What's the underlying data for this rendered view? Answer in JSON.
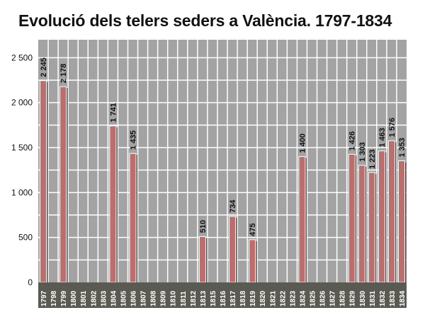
{
  "chart_data": {
    "type": "bar",
    "title": "Evolució dels telers seders a València. 1797-1834",
    "xlabel": "",
    "ylabel": "",
    "ylim": [
      0,
      2700
    ],
    "yticks": [
      0,
      500,
      1000,
      1500,
      2000,
      2500
    ],
    "ytick_labels": [
      "0",
      "500",
      "1 000",
      "1 500",
      "2 000",
      "2 500"
    ],
    "grid": true,
    "categories": [
      "1797",
      "1798",
      "1799",
      "1800",
      "1801",
      "1802",
      "1803",
      "1804",
      "1805",
      "1806",
      "1807",
      "1808",
      "1809",
      "1810",
      "1811",
      "1812",
      "1813",
      "1815",
      "1816",
      "1817",
      "1818",
      "1819",
      "1820",
      "1821",
      "1822",
      "1823",
      "1824",
      "1825",
      "1826",
      "1827",
      "1828",
      "1829",
      "1830",
      "1831",
      "1832",
      "1833",
      "1834"
    ],
    "values": [
      2245,
      null,
      2178,
      null,
      null,
      null,
      null,
      1741,
      null,
      1435,
      null,
      null,
      null,
      null,
      null,
      null,
      510,
      null,
      null,
      734,
      null,
      475,
      null,
      null,
      null,
      null,
      1400,
      null,
      null,
      null,
      null,
      1426,
      1303,
      1223,
      1463,
      1576,
      1353
    ],
    "value_labels": [
      "2 245",
      "",
      "2 178",
      "",
      "",
      "",
      "",
      "1 741",
      "",
      "1 435",
      "",
      "",
      "",
      "",
      "",
      "",
      "510",
      "",
      "",
      "734",
      "",
      "475",
      "",
      "",
      "",
      "",
      "1 400",
      "",
      "",
      "",
      "",
      "1 426",
      "1 303",
      "1 223",
      "1 463",
      "1 576",
      "1 353"
    ]
  },
  "colors": {
    "background_panel": "#a3a3a3",
    "grid_lines": "#ffffff",
    "bar_fill": "#bb6e6e",
    "bar_edge": "#ffffff",
    "bar_shadow": "#4a4a4a",
    "axis_band": "#5a5a52",
    "axis_text": "#ffffff",
    "text": "#111111"
  }
}
